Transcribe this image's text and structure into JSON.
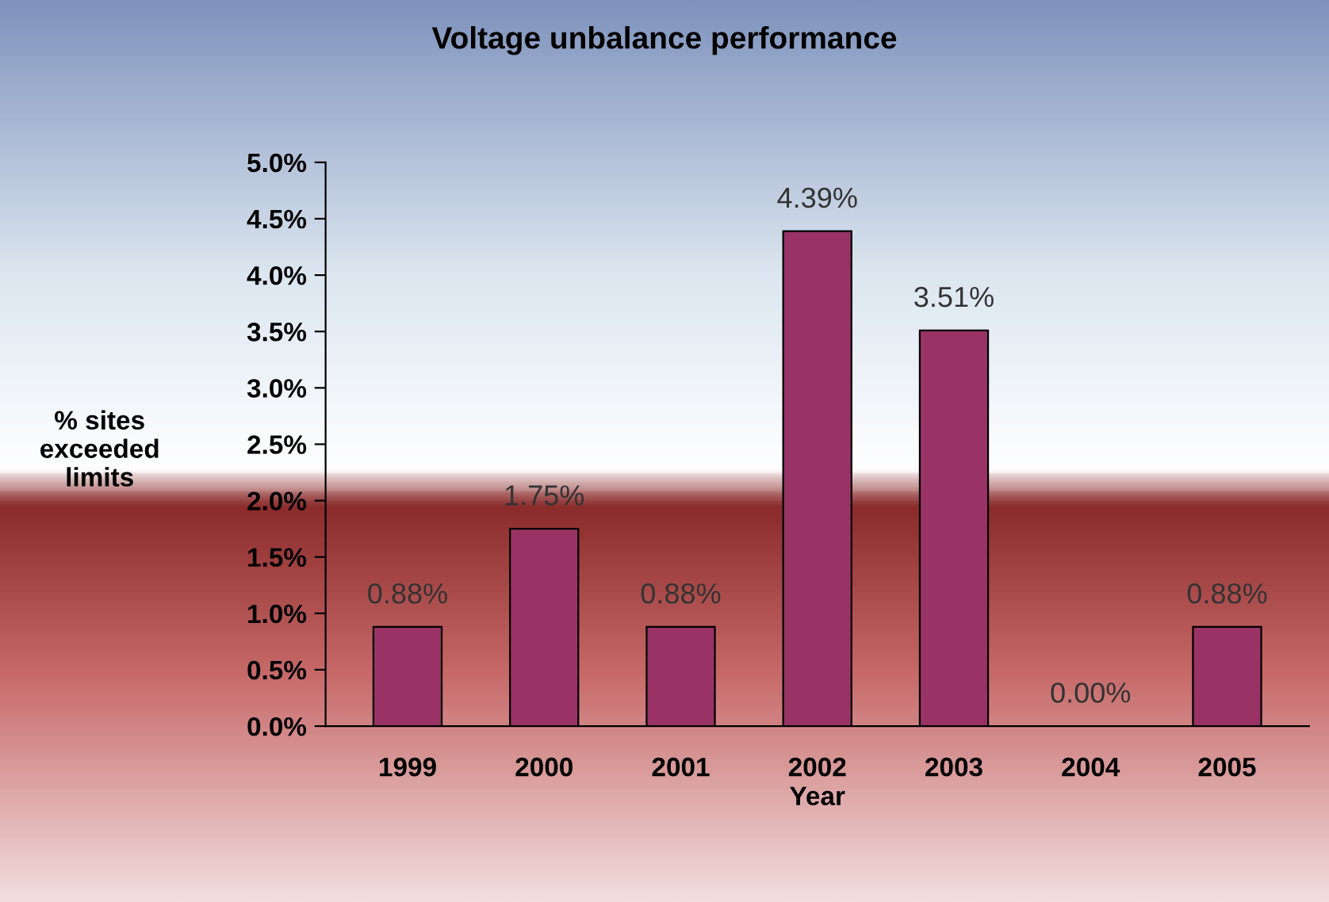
{
  "chart_data": {
    "type": "bar",
    "title": "Voltage unbalance performance",
    "xlabel": "Year",
    "ylabel": "% sites\nexceeded\nlimits",
    "categories": [
      "1999",
      "2000",
      "2001",
      "2002",
      "2003",
      "2004",
      "2005"
    ],
    "values": [
      0.88,
      1.75,
      0.88,
      4.39,
      3.51,
      0.0,
      0.88
    ],
    "value_labels": [
      "0.88%",
      "1.75%",
      "0.88%",
      "4.39%",
      "3.51%",
      "0.00%",
      "0.88%"
    ],
    "color": "#993366",
    "ylim": [
      0,
      5
    ],
    "yticks": [
      {
        "value": 0,
        "label": "0.0%"
      },
      {
        "value": 0.5,
        "label": "0.5%"
      },
      {
        "value": 1,
        "label": "1.0%"
      },
      {
        "value": 1.5,
        "label": "1.5%"
      },
      {
        "value": 2,
        "label": "2.0%"
      },
      {
        "value": 2.5,
        "label": "2.5%"
      },
      {
        "value": 3,
        "label": "3.0%"
      },
      {
        "value": 3.5,
        "label": "3.5%"
      },
      {
        "value": 4,
        "label": "4.0%"
      },
      {
        "value": 4.5,
        "label": "4.5%"
      },
      {
        "value": 5,
        "label": "5.0%"
      }
    ],
    "grid": false,
    "legend": false
  }
}
